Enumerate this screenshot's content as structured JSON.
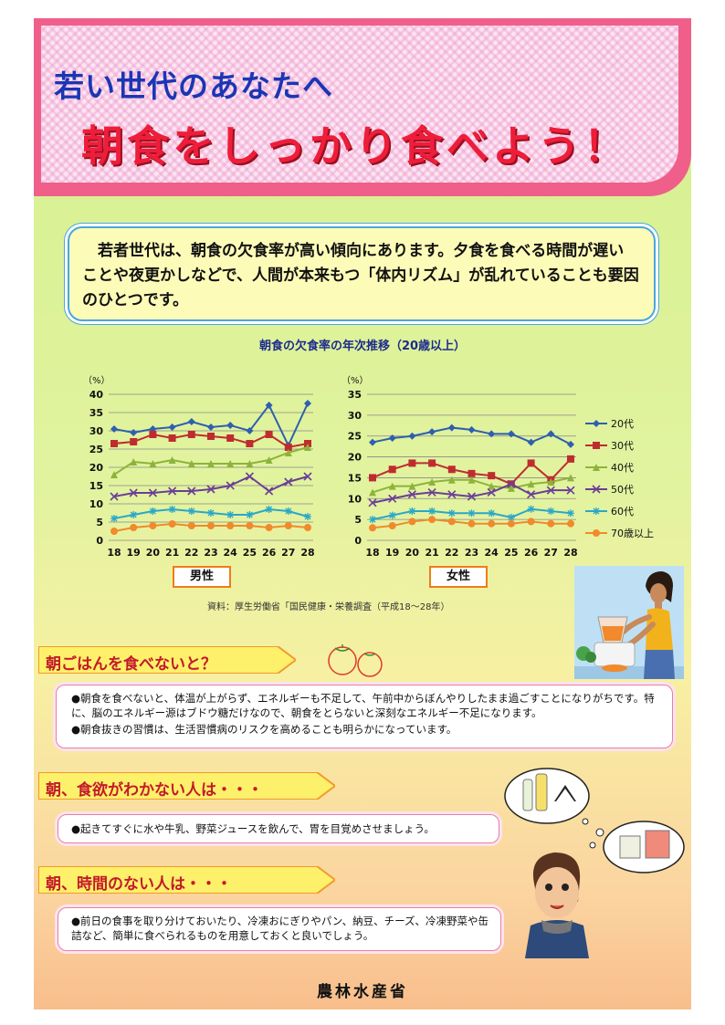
{
  "header": {
    "subtitle": "若い世代のあなたへ",
    "title": "朝食をしっかり食べよう！"
  },
  "intro": {
    "text": "　若者世代は、朝食の欠食率が高い傾向にあります。夕食を食べる時間が遅いことや夜更かしなどで、人間が本来もつ「体内リズム」が乱れていることも要因のひとつです。"
  },
  "chart_section": {
    "title": "朝食の欠食率の年次推移（20歳以上）",
    "male_label": "男性",
    "female_label": "女性",
    "source": "資料：厚生労働省「国民健康・栄養調査（平成18～28年）"
  },
  "chart_data": [
    {
      "type": "line",
      "panel": "男性",
      "ylabel": "（%）",
      "ylim": [
        0,
        40
      ],
      "yticks": [
        0,
        5,
        10,
        15,
        20,
        25,
        30,
        35,
        40
      ],
      "x": [
        "18",
        "19",
        "20",
        "21",
        "22",
        "23",
        "24",
        "25",
        "26",
        "27",
        "28"
      ],
      "grid": true,
      "series": [
        {
          "name": "20代",
          "color": "#2e5fb0",
          "values": [
            30.5,
            29.5,
            30.5,
            31,
            32.5,
            31,
            31.5,
            30,
            37,
            26,
            37.5
          ]
        },
        {
          "name": "30代",
          "color": "#bf2c30",
          "values": [
            26.5,
            27,
            29,
            28,
            29,
            28.5,
            28,
            26.5,
            29,
            25.5,
            26.5
          ]
        },
        {
          "name": "40代",
          "color": "#8db33b",
          "values": [
            18,
            21.5,
            21,
            22,
            21,
            21,
            21,
            21,
            22,
            24,
            25.5
          ]
        },
        {
          "name": "50代",
          "color": "#6a3f96",
          "values": [
            12,
            13,
            13,
            13.5,
            13.5,
            14,
            15,
            17.5,
            13.5,
            16,
            17.5
          ]
        },
        {
          "name": "60代",
          "color": "#2aa7c8",
          "values": [
            6,
            7,
            8,
            8.5,
            8,
            7.5,
            7,
            7,
            8.5,
            8,
            6.5
          ]
        },
        {
          "name": "70歳以上",
          "color": "#f08a2c",
          "values": [
            2.5,
            3.5,
            4,
            4.5,
            4,
            4,
            4,
            4,
            3.5,
            4,
            3.5
          ]
        }
      ]
    },
    {
      "type": "line",
      "panel": "女性",
      "ylabel": "（%）",
      "ylim": [
        0,
        35
      ],
      "yticks": [
        0,
        5,
        10,
        15,
        20,
        25,
        30,
        35
      ],
      "x": [
        "18",
        "19",
        "20",
        "21",
        "22",
        "23",
        "24",
        "25",
        "26",
        "27",
        "28"
      ],
      "grid": true,
      "legend": "right",
      "series": [
        {
          "name": "20代",
          "color": "#2e5fb0",
          "values": [
            23.5,
            24.5,
            25,
            26,
            27,
            26.5,
            25.5,
            25.5,
            23.5,
            25.5,
            23
          ]
        },
        {
          "name": "30代",
          "color": "#bf2c30",
          "values": [
            15,
            17,
            18.5,
            18.5,
            17,
            16,
            15.5,
            13.5,
            18.5,
            14.5,
            19.5
          ]
        },
        {
          "name": "40代",
          "color": "#8db33b",
          "values": [
            11.5,
            13,
            13,
            14,
            14.5,
            14.5,
            13,
            12.5,
            13.5,
            14,
            15
          ]
        },
        {
          "name": "50代",
          "color": "#6a3f96",
          "values": [
            9,
            10,
            11,
            11.5,
            11,
            10.5,
            11.5,
            13.5,
            11,
            12,
            12
          ]
        },
        {
          "name": "60代",
          "color": "#2aa7c8",
          "values": [
            5,
            6,
            7,
            7,
            6.5,
            6.5,
            6.5,
            5.5,
            7.5,
            7,
            6.5
          ]
        },
        {
          "name": "70歳以上",
          "color": "#f08a2c",
          "values": [
            3,
            3.5,
            4.5,
            5,
            4.5,
            4,
            4,
            4,
            4.5,
            4,
            4
          ]
        }
      ]
    }
  ],
  "sections": [
    {
      "heading": "朝ごはんを食べないと？",
      "bullets": [
        "●朝食を食べないと、体温が上がらず、エネルギーも不足して、午前中からぼんやりしたまま過ごすことになりがちです。特に、脳のエネルギー源はブドウ糖だけなので、朝食をとらないと深刻なエネルギー不足になります。",
        "●朝食抜きの習慣は、生活習慣病のリスクを高めることも明らかになっています。"
      ]
    },
    {
      "heading": "朝、食欲がわかない人は・・・",
      "bullets": [
        "●起きてすぐに水や牛乳、野菜ジュースを飲んで、胃を目覚めさせましょう。"
      ]
    },
    {
      "heading": "朝、時間のない人は・・・",
      "bullets": [
        "●前日の食事を取り分けておいたり、冷凍おにぎりやパン、納豆、チーズ、冷凍野菜や缶詰など、簡単に食べられるものを用意しておくと良いでしょう。"
      ]
    }
  ],
  "footer": {
    "ministry": "農林水産省"
  }
}
